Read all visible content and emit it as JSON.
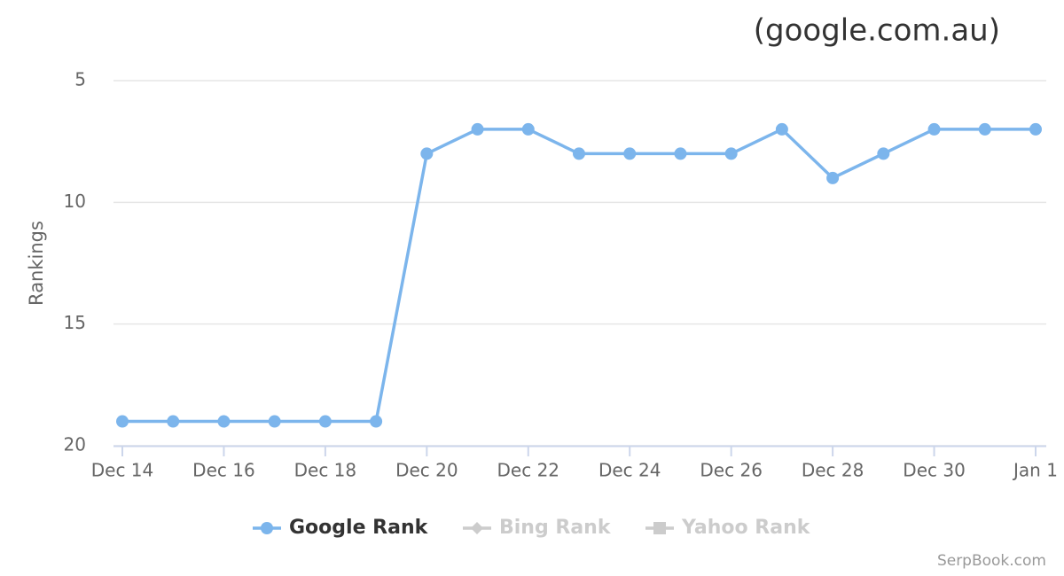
{
  "chart_data": {
    "type": "line",
    "title": "(google.com.au)",
    "y_label": "Rankings",
    "credit": "SerpBook.com",
    "categories": [
      "Dec 14",
      null,
      "Dec 16",
      null,
      "Dec 18",
      null,
      "Dec 20",
      null,
      "Dec 22",
      null,
      "Dec 24",
      null,
      "Dec 26",
      null,
      "Dec 28",
      null,
      "Dec 30",
      null,
      "Jan 1"
    ],
    "series": [
      {
        "name": "Google Rank",
        "color": "#7cb5ec",
        "marker": "circle",
        "visible": true,
        "values": [
          19,
          19,
          19,
          19,
          19,
          19,
          8,
          7,
          7,
          8,
          8,
          8,
          8,
          7,
          9,
          8,
          7,
          7,
          7
        ]
      },
      {
        "name": "Bing Rank",
        "color": "#cccccc",
        "marker": "diamond",
        "visible": false,
        "values": [
          null,
          null,
          null,
          null,
          null,
          null,
          null,
          null,
          null,
          null,
          null,
          null,
          null,
          null,
          null,
          null,
          null,
          null,
          null
        ]
      },
      {
        "name": "Yahoo Rank",
        "color": "#cccccc",
        "marker": "square",
        "visible": false,
        "values": [
          null,
          null,
          null,
          null,
          null,
          null,
          null,
          null,
          null,
          null,
          null,
          null,
          null,
          null,
          null,
          null,
          null,
          null,
          null
        ]
      }
    ],
    "ylim": [
      5,
      20
    ],
    "yticks": [
      5,
      10,
      15,
      20
    ],
    "reversed_y": true,
    "grid": true,
    "legend": "bottom"
  }
}
